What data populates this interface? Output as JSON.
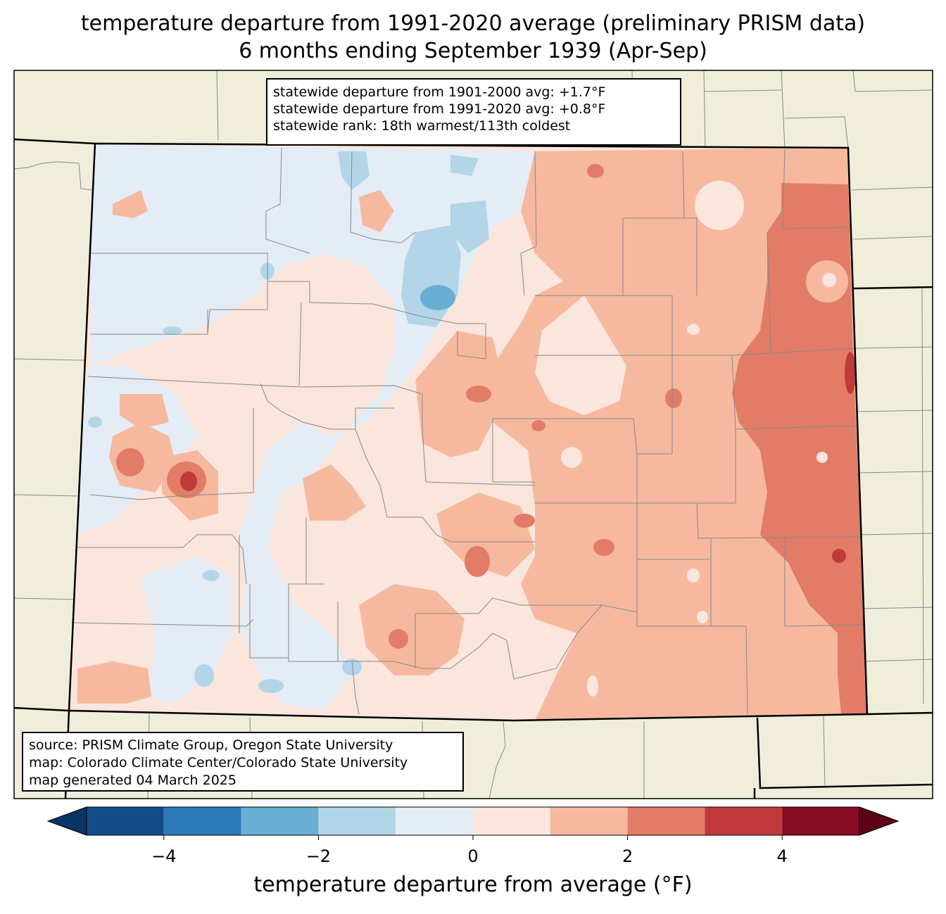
{
  "title": {
    "line1": "temperature departure from 1991-2020 average (preliminary PRISM data)",
    "line2": "6 months ending September 1939 (Apr-Sep)"
  },
  "stats": {
    "line1": "statewide departure from 1901-2000 avg: +1.7°F",
    "line2": "statewide departure from 1991-2020 avg: +0.8°F",
    "line3": "statewide rank: 18th warmest/113th coldest"
  },
  "source": {
    "line1": "source: PRISM Climate Group, Oregon State University",
    "line2": "map: Colorado Climate Center/Colorado State University",
    "line3": "map generated 04 March 2025"
  },
  "colorbar": {
    "label": "temperature departure from average (°F)",
    "ticks": [
      "−4",
      "−2",
      "0",
      "2",
      "4"
    ],
    "tick_values": [
      -4,
      -2,
      0,
      2,
      4
    ],
    "bins": [
      -5,
      -4,
      -3,
      -2,
      -1,
      0,
      1,
      2,
      3,
      4,
      5
    ],
    "colors": [
      "#0a3464",
      "#154d8a",
      "#2e7ab8",
      "#6aaed3",
      "#b3d5e8",
      "#e4edf6",
      "#fae6dd",
      "#f6b99f",
      "#e27c66",
      "#c13a3b",
      "#850c22",
      "#5c0018"
    ],
    "under_color": "#0a3464",
    "over_color": "#5c0018"
  },
  "map_colors": {
    "background": "#f0eedb",
    "neutral_cool": "#e4edf6",
    "neutral_warm": "#fae6dd",
    "light_blue": "#b3d5e8",
    "mid_blue": "#6aaed3",
    "light_red": "#f6b99f",
    "mid_red": "#e27c66",
    "dark_red": "#c13a3b",
    "deep_red": "#850c22"
  }
}
